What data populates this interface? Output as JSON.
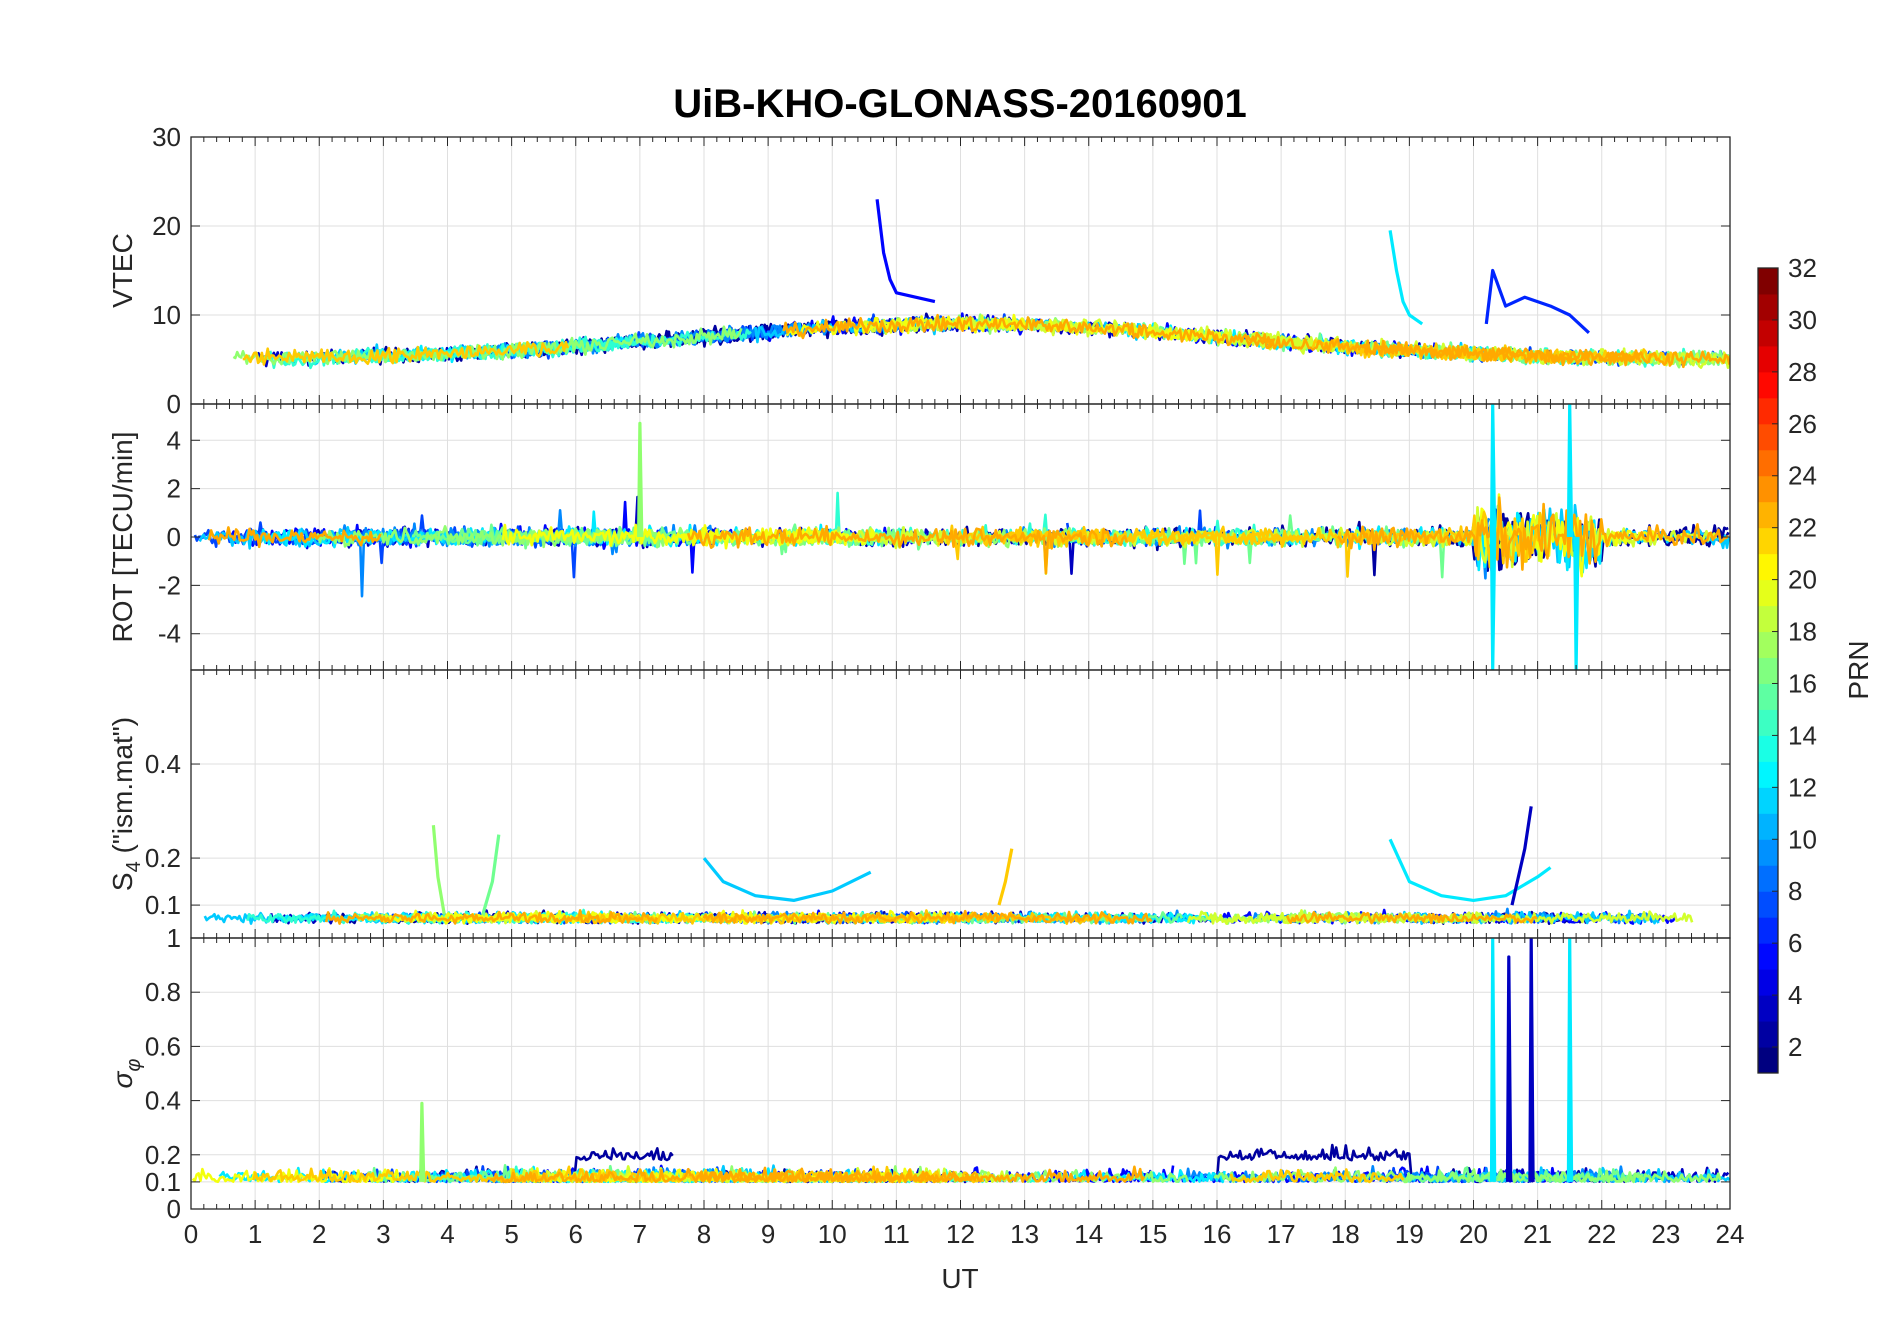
{
  "chart_data": {
    "type": "line",
    "title": "UiB-KHO-GLONASS-20160901",
    "xlabel": "UT",
    "xlim": [
      0,
      24
    ],
    "xticks": [
      "0",
      "1",
      "2",
      "3",
      "4",
      "5",
      "6",
      "7",
      "8",
      "9",
      "10",
      "11",
      "12",
      "13",
      "14",
      "15",
      "16",
      "17",
      "18",
      "19",
      "20",
      "21",
      "22",
      "23",
      "24"
    ],
    "grid": true,
    "colorbar": {
      "label": "PRN",
      "colormap": "jet",
      "range": [
        1,
        32
      ],
      "ticks": [
        "2",
        "4",
        "6",
        "8",
        "10",
        "12",
        "14",
        "16",
        "18",
        "20",
        "22",
        "24",
        "26",
        "28",
        "30",
        "32"
      ]
    },
    "panels": [
      {
        "ylabel": "VTEC",
        "ylim": [
          0,
          30
        ],
        "yticks": [
          "0",
          "10",
          "20",
          "30"
        ],
        "yvals": [
          0,
          10,
          20,
          30
        ],
        "features": [
          {
            "prn": 5,
            "x": [
              10.7,
              10.8,
              10.9,
              11.0,
              11.3,
              11.6
            ],
            "y": [
              23,
              17,
              14,
              12.5,
              12,
              11.5
            ]
          },
          {
            "prn": 12,
            "x": [
              18.7,
              18.8,
              18.9,
              19.0,
              19.2
            ],
            "y": [
              19.5,
              15,
              11.5,
              10,
              9
            ]
          },
          {
            "prn": 6,
            "x": [
              20.2,
              20.3,
              20.5,
              20.8,
              21.2,
              21.5,
              21.8
            ],
            "y": [
              9,
              15,
              11,
              12,
              11,
              10,
              8
            ]
          }
        ]
      },
      {
        "ylabel": "ROT [TECU/min]",
        "ylim": [
          -5.5,
          5.5
        ],
        "yticks": [
          "-4",
          "-2",
          "0",
          "2",
          "4"
        ],
        "yvals": [
          -4,
          -2,
          0,
          2,
          4
        ],
        "features": [
          {
            "prn": 17,
            "x": [
              7.0
            ],
            "y": [
              4.7
            ]
          },
          {
            "prn": 12,
            "x": [
              20.3
            ],
            "y": [
              5.5
            ]
          },
          {
            "prn": 12,
            "x": [
              20.3
            ],
            "y": [
              -5.5
            ]
          },
          {
            "prn": 12,
            "x": [
              21.5
            ],
            "y": [
              5.5
            ]
          },
          {
            "prn": 12,
            "x": [
              21.6
            ],
            "y": [
              -5.5
            ]
          }
        ]
      },
      {
        "ylabel": "S4 (\"ism.mat\")",
        "ylim": [
          0.03,
          0.6
        ],
        "yticks": [
          "0.1",
          "0.2",
          "0.4"
        ],
        "yvals": [
          0.1,
          0.2,
          0.4
        ],
        "features": [
          {
            "prn": 17,
            "x": [
              3.78,
              3.85,
              3.95
            ],
            "y": [
              0.27,
              0.16,
              0.08
            ]
          },
          {
            "prn": 16,
            "x": [
              4.55,
              4.7,
              4.8
            ],
            "y": [
              0.08,
              0.15,
              0.25
            ]
          },
          {
            "prn": 11,
            "x": [
              8.0,
              8.3,
              8.8,
              9.4,
              10.0,
              10.6
            ],
            "y": [
              0.2,
              0.15,
              0.12,
              0.11,
              0.13,
              0.17
            ]
          },
          {
            "prn": 12,
            "x": [
              18.7,
              19.0,
              19.5,
              20.0,
              20.5,
              21.0,
              21.2
            ],
            "y": [
              0.24,
              0.15,
              0.12,
              0.11,
              0.12,
              0.16,
              0.18
            ]
          },
          {
            "prn": 3,
            "x": [
              20.6,
              20.8,
              20.9
            ],
            "y": [
              0.1,
              0.22,
              0.31
            ]
          },
          {
            "prn": 22,
            "x": [
              12.6,
              12.7,
              12.8
            ],
            "y": [
              0.1,
              0.15,
              0.22
            ]
          }
        ]
      },
      {
        "ylabel": "σφ",
        "ylim": [
          0,
          1
        ],
        "yticks": [
          "0",
          "0.1",
          "0.2",
          "0.4",
          "0.6",
          "0.8",
          "1"
        ],
        "yvals": [
          0,
          0.1,
          0.2,
          0.4,
          0.6,
          0.8,
          1
        ],
        "features": [
          {
            "prn": 12,
            "x": [
              20.3
            ],
            "y": [
              1.0
            ]
          },
          {
            "prn": 3,
            "x": [
              20.55
            ],
            "y": [
              0.93
            ]
          },
          {
            "prn": 3,
            "x": [
              20.9
            ],
            "y": [
              1.0
            ]
          },
          {
            "prn": 12,
            "x": [
              21.5
            ],
            "y": [
              1.0
            ]
          },
          {
            "prn": 17,
            "x": [
              3.6
            ],
            "y": [
              0.39
            ]
          }
        ]
      }
    ]
  }
}
